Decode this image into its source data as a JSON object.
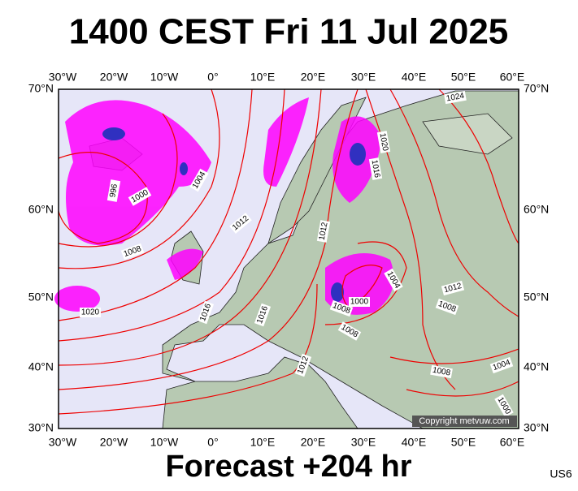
{
  "header": {
    "title": "1400 CEST Fri 11 Jul 2025"
  },
  "map": {
    "lon_labels": [
      "30°W",
      "20°W",
      "10°W",
      "0°",
      "10°E",
      "20°E",
      "30°E",
      "40°E",
      "50°E",
      "60°E"
    ],
    "lat_labels": [
      "70°N",
      "60°N",
      "50°N",
      "40°N",
      "30°N"
    ],
    "isobar_labels": [
      "1024",
      "1020",
      "1016",
      "996",
      "1000",
      "1004",
      "1012",
      "1008",
      "1020",
      "1016",
      "1016",
      "1012",
      "1012",
      "1004",
      "1012",
      "1008",
      "1000",
      "1008",
      "1008",
      "1008",
      "1004",
      "1000"
    ],
    "copyright": "Copyright metvuw.com"
  },
  "footer": {
    "forecast": "Forecast +204 hr",
    "model": "US6"
  }
}
